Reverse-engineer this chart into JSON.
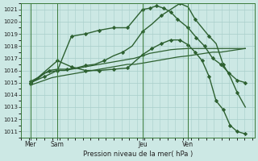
{
  "title": "Pression niveau de la mer( hPa )",
  "bg_color": "#cce8e4",
  "grid_color": "#a8ceca",
  "line_color": "#2d6030",
  "ylim": [
    1010.5,
    1021.5
  ],
  "yticks": [
    1011,
    1012,
    1013,
    1014,
    1015,
    1016,
    1017,
    1018,
    1019,
    1020,
    1021
  ],
  "xlim": [
    0,
    1.0
  ],
  "vlines_x": [
    0.04,
    0.155,
    0.52,
    0.715
  ],
  "xtick_pos": [
    0.04,
    0.155,
    0.52,
    0.715
  ],
  "xtick_labels": [
    "Mer",
    "Sam",
    "Jeu",
    "Ven"
  ],
  "series": [
    {
      "x": [
        0.04,
        0.07,
        0.1,
        0.13,
        0.155,
        0.185,
        0.215,
        0.245,
        0.275,
        0.305,
        0.335,
        0.365,
        0.395,
        0.425,
        0.455,
        0.485,
        0.52,
        0.55,
        0.58,
        0.61,
        0.64,
        0.67,
        0.715,
        0.75,
        0.785,
        0.82,
        0.855,
        0.89,
        0.925,
        0.96
      ],
      "y": [
        1014.8,
        1015.0,
        1015.2,
        1015.4,
        1015.5,
        1015.6,
        1015.7,
        1015.8,
        1015.9,
        1016.0,
        1016.1,
        1016.2,
        1016.3,
        1016.4,
        1016.5,
        1016.5,
        1016.6,
        1016.7,
        1016.8,
        1016.9,
        1017.0,
        1017.1,
        1017.2,
        1017.3,
        1017.4,
        1017.5,
        1017.5,
        1017.6,
        1017.7,
        1017.8
      ],
      "marker": false,
      "lw": 0.9
    },
    {
      "x": [
        0.04,
        0.07,
        0.1,
        0.155,
        0.185,
        0.215,
        0.245,
        0.275,
        0.305,
        0.335,
        0.365,
        0.395,
        0.425,
        0.455,
        0.485,
        0.52,
        0.55,
        0.58,
        0.61,
        0.64,
        0.67,
        0.715,
        0.75,
        0.785,
        0.82,
        0.855,
        0.89,
        0.925,
        0.96
      ],
      "y": [
        1015.0,
        1015.3,
        1015.8,
        1016.0,
        1016.0,
        1016.1,
        1016.2,
        1016.3,
        1016.4,
        1016.5,
        1016.6,
        1016.7,
        1016.8,
        1016.9,
        1017.0,
        1017.2,
        1017.4,
        1017.5,
        1017.6,
        1017.7,
        1017.75,
        1017.8,
        1017.8,
        1017.8,
        1017.8,
        1017.8,
        1017.8,
        1017.8,
        1017.8
      ],
      "marker": false,
      "lw": 0.9
    },
    {
      "x": [
        0.04,
        0.1,
        0.155,
        0.215,
        0.275,
        0.335,
        0.395,
        0.455,
        0.52,
        0.55,
        0.58,
        0.61,
        0.64,
        0.67,
        0.715,
        0.75,
        0.785,
        0.82,
        0.855,
        0.89,
        0.925,
        0.96
      ],
      "y": [
        1015.0,
        1015.5,
        1016.0,
        1018.8,
        1019.0,
        1019.3,
        1019.5,
        1019.5,
        1021.0,
        1021.1,
        1021.3,
        1021.1,
        1020.8,
        1020.2,
        1019.5,
        1018.7,
        1018.0,
        1017.0,
        1016.5,
        1015.8,
        1015.2,
        1015.0
      ],
      "marker": true,
      "markevery": 1,
      "lw": 1.0
    },
    {
      "x": [
        0.04,
        0.08,
        0.12,
        0.155,
        0.195,
        0.235,
        0.275,
        0.315,
        0.355,
        0.395,
        0.435,
        0.475,
        0.52,
        0.56,
        0.6,
        0.64,
        0.68,
        0.715,
        0.745,
        0.775,
        0.805,
        0.835,
        0.865,
        0.895,
        0.925,
        0.96
      ],
      "y": [
        1015.1,
        1015.5,
        1016.0,
        1016.1,
        1016.1,
        1016.2,
        1016.4,
        1016.5,
        1016.8,
        1017.2,
        1017.5,
        1018.0,
        1019.2,
        1019.8,
        1020.5,
        1021.0,
        1021.5,
        1021.2,
        1020.2,
        1019.5,
        1018.8,
        1018.2,
        1016.5,
        1015.5,
        1014.2,
        1013.0
      ],
      "marker": true,
      "markevery": 2,
      "lw": 1.0
    },
    {
      "x": [
        0.04,
        0.155,
        0.215,
        0.275,
        0.335,
        0.395,
        0.455,
        0.52,
        0.56,
        0.6,
        0.64,
        0.68,
        0.715,
        0.745,
        0.775,
        0.805,
        0.835,
        0.865,
        0.895,
        0.925,
        0.96
      ],
      "y": [
        1014.9,
        1016.8,
        1016.3,
        1016.0,
        1016.0,
        1016.1,
        1016.2,
        1017.3,
        1017.8,
        1018.2,
        1018.5,
        1018.5,
        1018.1,
        1017.5,
        1016.8,
        1015.5,
        1013.5,
        1012.8,
        1011.5,
        1011.0,
        1010.8
      ],
      "marker": true,
      "markevery": 1,
      "lw": 1.0
    }
  ]
}
